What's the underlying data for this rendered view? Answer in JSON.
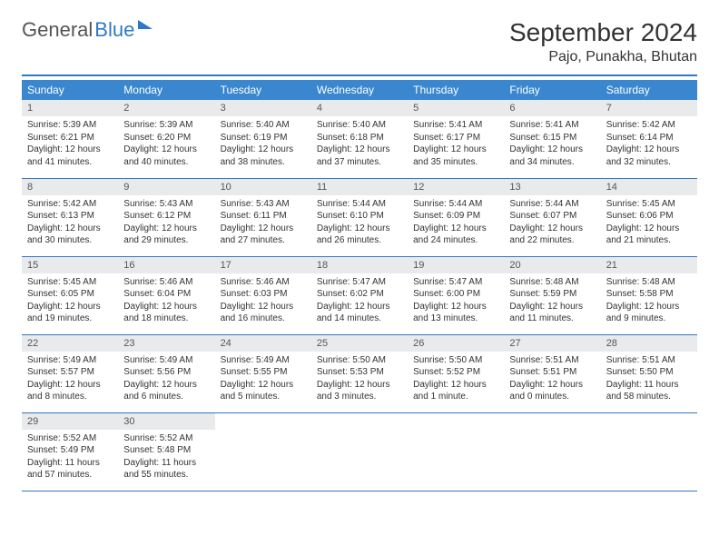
{
  "brand": {
    "part1": "General",
    "part2": "Blue"
  },
  "title": "September 2024",
  "location": "Pajo, Punakha, Bhutan",
  "colors": {
    "header_bg": "#3a87cf",
    "rule": "#2f78c4",
    "daynum_bg": "#e9eaeb",
    "text": "#333333"
  },
  "weekdays": [
    "Sunday",
    "Monday",
    "Tuesday",
    "Wednesday",
    "Thursday",
    "Friday",
    "Saturday"
  ],
  "days": [
    {
      "n": "1",
      "sr": "5:39 AM",
      "ss": "6:21 PM",
      "dl": "12 hours and 41 minutes."
    },
    {
      "n": "2",
      "sr": "5:39 AM",
      "ss": "6:20 PM",
      "dl": "12 hours and 40 minutes."
    },
    {
      "n": "3",
      "sr": "5:40 AM",
      "ss": "6:19 PM",
      "dl": "12 hours and 38 minutes."
    },
    {
      "n": "4",
      "sr": "5:40 AM",
      "ss": "6:18 PM",
      "dl": "12 hours and 37 minutes."
    },
    {
      "n": "5",
      "sr": "5:41 AM",
      "ss": "6:17 PM",
      "dl": "12 hours and 35 minutes."
    },
    {
      "n": "6",
      "sr": "5:41 AM",
      "ss": "6:15 PM",
      "dl": "12 hours and 34 minutes."
    },
    {
      "n": "7",
      "sr": "5:42 AM",
      "ss": "6:14 PM",
      "dl": "12 hours and 32 minutes."
    },
    {
      "n": "8",
      "sr": "5:42 AM",
      "ss": "6:13 PM",
      "dl": "12 hours and 30 minutes."
    },
    {
      "n": "9",
      "sr": "5:43 AM",
      "ss": "6:12 PM",
      "dl": "12 hours and 29 minutes."
    },
    {
      "n": "10",
      "sr": "5:43 AM",
      "ss": "6:11 PM",
      "dl": "12 hours and 27 minutes."
    },
    {
      "n": "11",
      "sr": "5:44 AM",
      "ss": "6:10 PM",
      "dl": "12 hours and 26 minutes."
    },
    {
      "n": "12",
      "sr": "5:44 AM",
      "ss": "6:09 PM",
      "dl": "12 hours and 24 minutes."
    },
    {
      "n": "13",
      "sr": "5:44 AM",
      "ss": "6:07 PM",
      "dl": "12 hours and 22 minutes."
    },
    {
      "n": "14",
      "sr": "5:45 AM",
      "ss": "6:06 PM",
      "dl": "12 hours and 21 minutes."
    },
    {
      "n": "15",
      "sr": "5:45 AM",
      "ss": "6:05 PM",
      "dl": "12 hours and 19 minutes."
    },
    {
      "n": "16",
      "sr": "5:46 AM",
      "ss": "6:04 PM",
      "dl": "12 hours and 18 minutes."
    },
    {
      "n": "17",
      "sr": "5:46 AM",
      "ss": "6:03 PM",
      "dl": "12 hours and 16 minutes."
    },
    {
      "n": "18",
      "sr": "5:47 AM",
      "ss": "6:02 PM",
      "dl": "12 hours and 14 minutes."
    },
    {
      "n": "19",
      "sr": "5:47 AM",
      "ss": "6:00 PM",
      "dl": "12 hours and 13 minutes."
    },
    {
      "n": "20",
      "sr": "5:48 AM",
      "ss": "5:59 PM",
      "dl": "12 hours and 11 minutes."
    },
    {
      "n": "21",
      "sr": "5:48 AM",
      "ss": "5:58 PM",
      "dl": "12 hours and 9 minutes."
    },
    {
      "n": "22",
      "sr": "5:49 AM",
      "ss": "5:57 PM",
      "dl": "12 hours and 8 minutes."
    },
    {
      "n": "23",
      "sr": "5:49 AM",
      "ss": "5:56 PM",
      "dl": "12 hours and 6 minutes."
    },
    {
      "n": "24",
      "sr": "5:49 AM",
      "ss": "5:55 PM",
      "dl": "12 hours and 5 minutes."
    },
    {
      "n": "25",
      "sr": "5:50 AM",
      "ss": "5:53 PM",
      "dl": "12 hours and 3 minutes."
    },
    {
      "n": "26",
      "sr": "5:50 AM",
      "ss": "5:52 PM",
      "dl": "12 hours and 1 minute."
    },
    {
      "n": "27",
      "sr": "5:51 AM",
      "ss": "5:51 PM",
      "dl": "12 hours and 0 minutes."
    },
    {
      "n": "28",
      "sr": "5:51 AM",
      "ss": "5:50 PM",
      "dl": "11 hours and 58 minutes."
    },
    {
      "n": "29",
      "sr": "5:52 AM",
      "ss": "5:49 PM",
      "dl": "11 hours and 57 minutes."
    },
    {
      "n": "30",
      "sr": "5:52 AM",
      "ss": "5:48 PM",
      "dl": "11 hours and 55 minutes."
    }
  ],
  "labels": {
    "sunrise": "Sunrise:",
    "sunset": "Sunset:",
    "daylight": "Daylight:"
  },
  "layout": {
    "start_weekday": 0,
    "total_cells": 35
  }
}
